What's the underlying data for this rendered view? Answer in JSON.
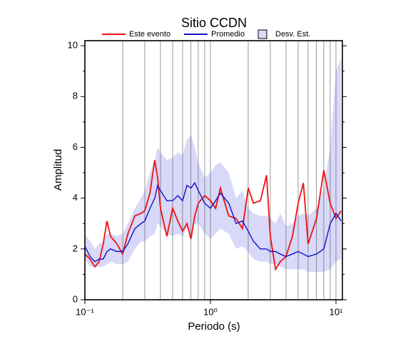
{
  "chart_data": {
    "type": "line",
    "title": "Sitio CCDN",
    "xlabel": "Periodo (s)",
    "ylabel": "Amplitud",
    "log_x": true,
    "xlim": [
      0.1,
      11.25
    ],
    "ylim": [
      0,
      10.2
    ],
    "xticks": [
      {
        "value": 0.1,
        "label": "10⁻¹"
      },
      {
        "value": 1,
        "label": "10⁰"
      },
      {
        "value": 10,
        "label": "10¹"
      }
    ],
    "x_minor_ticks": [
      0.2,
      0.3,
      0.4,
      0.5,
      0.6,
      0.7,
      0.8,
      0.9,
      2,
      3,
      4,
      5,
      6,
      7,
      8,
      9
    ],
    "yticks": [
      0,
      2,
      4,
      6,
      8,
      10
    ],
    "y_minor_ticks": [
      1,
      3,
      5,
      7,
      9
    ],
    "x": [
      0.1,
      0.11,
      0.12,
      0.13,
      0.14,
      0.15,
      0.16,
      0.18,
      0.2,
      0.22,
      0.25,
      0.28,
      0.3,
      0.33,
      0.36,
      0.38,
      0.4,
      0.45,
      0.5,
      0.55,
      0.6,
      0.65,
      0.7,
      0.75,
      0.8,
      0.9,
      1.0,
      1.1,
      1.2,
      1.4,
      1.6,
      1.8,
      2.0,
      2.2,
      2.5,
      2.8,
      3.0,
      3.3,
      3.6,
      4.0,
      4.5,
      5.0,
      5.5,
      6.0,
      7.0,
      8.0,
      9.0,
      10,
      11
    ],
    "band": {
      "name": "Desv. Est.",
      "color": "#d8d8f8",
      "upper": [
        2.6,
        2.3,
        2.0,
        2.2,
        2.3,
        2.6,
        2.6,
        2.5,
        2.6,
        3.0,
        3.6,
        4.0,
        4.3,
        5.0,
        5.5,
        6.0,
        5.8,
        5.5,
        5.6,
        5.8,
        5.7,
        6.3,
        6.5,
        6.0,
        5.4,
        4.8,
        5.0,
        5.3,
        5.4,
        5.0,
        4.0,
        4.3,
        3.6,
        3.4,
        3.3,
        3.3,
        3.2,
        3.0,
        3.4,
        2.9,
        3.0,
        3.3,
        3.4,
        3.3,
        3.6,
        4.4,
        6.0,
        9.0,
        9.5
      ],
      "lower": [
        1.6,
        1.3,
        1.3,
        1.3,
        1.3,
        1.4,
        1.5,
        1.4,
        1.4,
        1.5,
        2.0,
        2.3,
        2.3,
        2.5,
        2.6,
        3.0,
        2.9,
        2.6,
        2.5,
        2.6,
        2.5,
        2.8,
        2.6,
        3.0,
        3.0,
        2.6,
        2.4,
        2.6,
        2.8,
        2.6,
        2.0,
        2.1,
        1.9,
        1.6,
        1.5,
        1.5,
        1.4,
        1.4,
        1.3,
        1.2,
        1.2,
        1.2,
        1.2,
        1.1,
        1.1,
        1.1,
        1.2,
        1.5,
        1.6
      ]
    },
    "series": [
      {
        "name": "Este evento",
        "color": "#ee1111",
        "values": [
          1.8,
          1.6,
          1.3,
          1.5,
          2.2,
          3.1,
          2.5,
          2.2,
          1.8,
          2.6,
          3.3,
          3.4,
          3.5,
          4.2,
          5.5,
          4.8,
          3.6,
          2.5,
          3.6,
          3.1,
          2.7,
          3.0,
          2.4,
          3.3,
          3.8,
          4.1,
          3.9,
          3.6,
          4.4,
          3.3,
          3.2,
          2.8,
          4.4,
          3.8,
          3.9,
          4.9,
          2.5,
          1.2,
          1.5,
          1.7,
          2.5,
          3.8,
          4.6,
          2.2,
          3.2,
          5.1,
          3.8,
          3.2,
          3.5
        ]
      },
      {
        "name": "Promedio",
        "color": "#1111cc",
        "values": [
          2.1,
          1.7,
          1.5,
          1.6,
          1.6,
          1.9,
          2.0,
          1.9,
          1.9,
          2.2,
          2.8,
          3.0,
          3.1,
          3.6,
          4.0,
          4.5,
          4.3,
          3.9,
          3.9,
          4.1,
          3.9,
          4.5,
          4.4,
          4.6,
          4.3,
          3.8,
          3.6,
          3.9,
          4.2,
          3.8,
          3.0,
          3.1,
          2.7,
          2.3,
          2.0,
          2.0,
          1.9,
          1.9,
          1.8,
          1.7,
          1.8,
          1.9,
          1.8,
          1.7,
          1.8,
          2.0,
          3.0,
          3.4,
          3.1
        ]
      }
    ]
  }
}
